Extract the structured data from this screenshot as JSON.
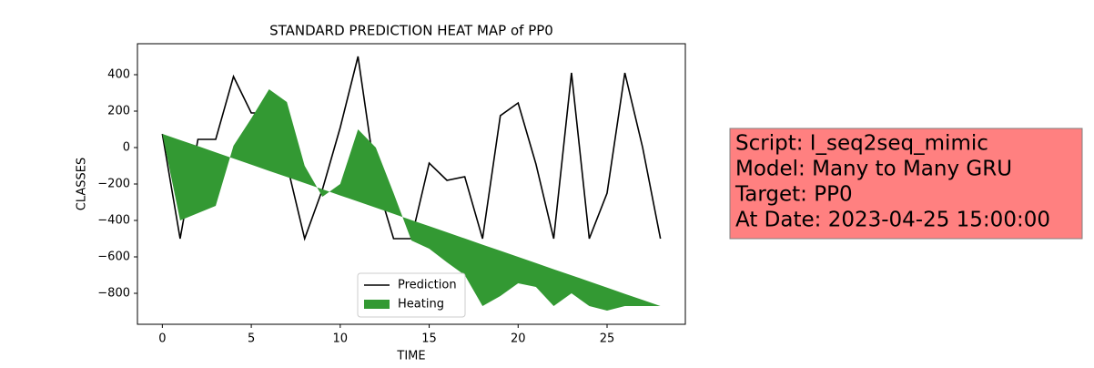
{
  "chart_data": {
    "type": "line-fill",
    "title": "STANDARD PREDICTION HEAT MAP of PP0",
    "xlabel": "TIME",
    "ylabel": "CLASSES",
    "x": [
      0,
      1,
      2,
      3,
      4,
      5,
      6,
      7,
      8,
      9,
      10,
      11,
      12,
      13,
      14,
      15,
      16,
      17,
      18,
      19,
      20,
      21,
      22,
      23,
      24,
      25,
      26,
      27,
      28
    ],
    "series": [
      {
        "name": "Prediction",
        "color": "#000000",
        "values": [
          75,
          -500,
          45,
          45,
          390,
          190,
          190,
          -90,
          -500,
          -230,
          110,
          500,
          -175,
          -500,
          -500,
          -85,
          -180,
          -160,
          -500,
          175,
          245,
          -90,
          -500,
          410,
          -500,
          -250,
          410,
          0,
          -500
        ]
      },
      {
        "name": "Heating",
        "color": "#339933",
        "fill": true,
        "values": [
          75,
          -400,
          -360,
          -320,
          10,
          160,
          320,
          250,
          -100,
          -270,
          -200,
          100,
          0,
          -250,
          -510,
          -555,
          -630,
          -700,
          -870,
          -815,
          -745,
          -765,
          -870,
          -800,
          -870,
          -895,
          -870,
          -870,
          -870
        ],
        "base": [
          75,
          41,
          8,
          -26,
          -60,
          -94,
          -128,
          -161,
          -195,
          -229,
          -263,
          -296,
          -330,
          -364,
          -398,
          -431,
          -465,
          -499,
          -533,
          -566,
          -600,
          -634,
          -668,
          -701,
          -735,
          -769,
          -803,
          -836,
          -870
        ]
      }
    ],
    "xlim": [
      -1.4,
      29.4
    ],
    "ylim": [
      -970,
      570
    ],
    "xticks": [
      0,
      5,
      10,
      15,
      20,
      25
    ],
    "yticks": [
      {
        "value": -800,
        "label": "−800"
      },
      {
        "value": -600,
        "label": "−600"
      },
      {
        "value": -400,
        "label": "−400"
      },
      {
        "value": -200,
        "label": "−200"
      },
      0,
      200,
      400
    ],
    "grid": false,
    "legend": "lower center"
  },
  "info_box": {
    "lines": [
      "Script: I_seq2seq_mimic",
      "Model: Many to Many GRU",
      "Target: PP0",
      "At Date: 2023-04-25 15:00:00"
    ],
    "color": "#ff8080"
  }
}
